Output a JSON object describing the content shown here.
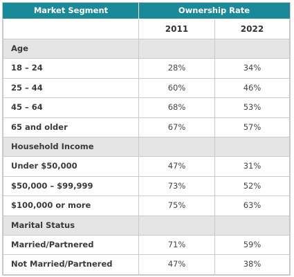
{
  "header": {
    "segment_label": "Market Segment",
    "rate_label": "Ownership Rate"
  },
  "years": [
    "2011",
    "2022"
  ],
  "sections": [
    {
      "title": "Age",
      "rows": [
        {
          "label": "18 – 24",
          "v2011": "28%",
          "v2022": "34%"
        },
        {
          "label": "25 – 44",
          "v2011": "60%",
          "v2022": "46%"
        },
        {
          "label": "45 – 64",
          "v2011": "68%",
          "v2022": "53%"
        },
        {
          "label": "65 and older",
          "v2011": "67%",
          "v2022": "57%"
        }
      ]
    },
    {
      "title": "Household Income",
      "rows": [
        {
          "label": "Under $50,000",
          "v2011": "47%",
          "v2022": "31%"
        },
        {
          "label": "$50,000 – $99,999",
          "v2011": "73%",
          "v2022": "52%"
        },
        {
          "label": "$100,000 or more",
          "v2011": "75%",
          "v2022": "63%"
        }
      ]
    },
    {
      "title": "Marital Status",
      "rows": [
        {
          "label": "Married/Partnered",
          "v2011": "71%",
          "v2022": "59%"
        },
        {
          "label": "Not Married/Partnered",
          "v2011": "47%",
          "v2022": "38%"
        }
      ]
    }
  ]
}
